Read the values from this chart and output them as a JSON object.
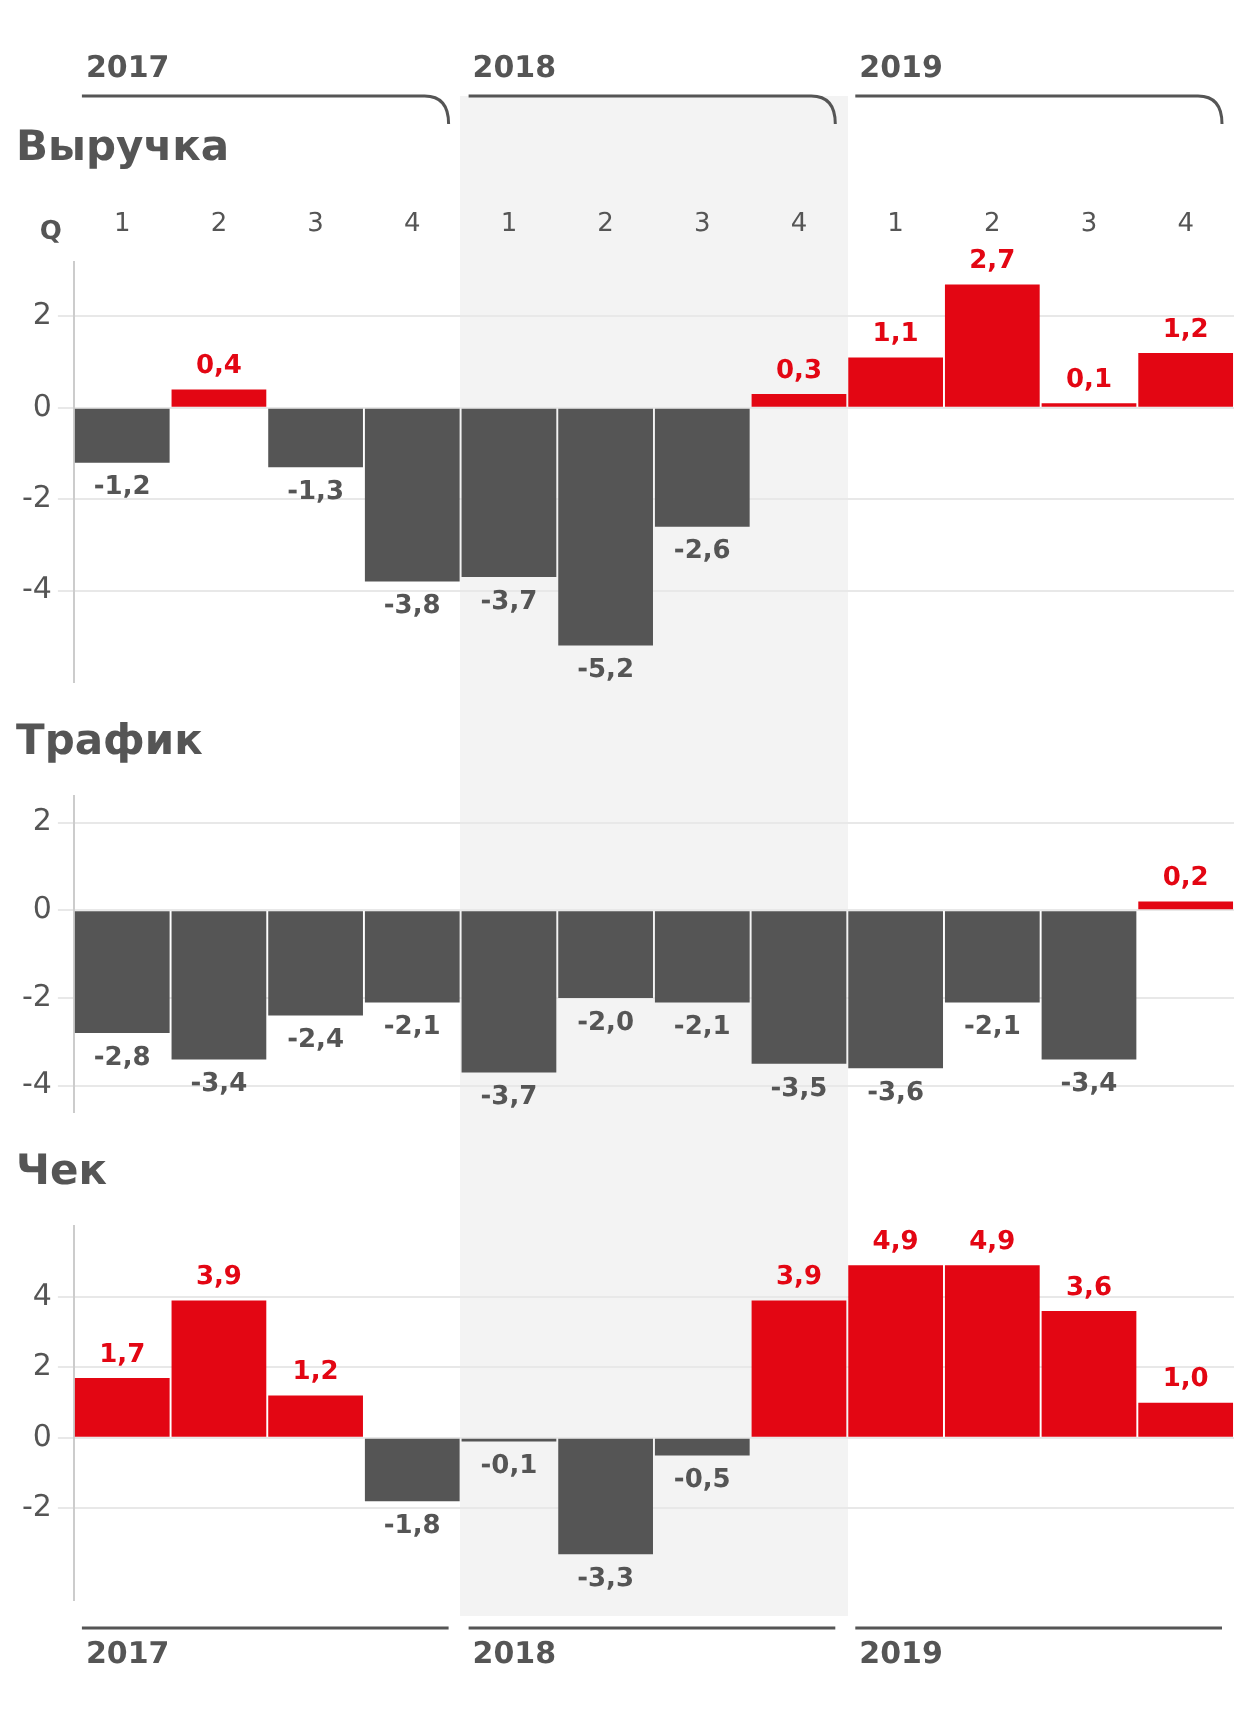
{
  "chart_data": [
    {
      "type": "bar",
      "title": "Выручка",
      "xlabel": "Q",
      "categories": [
        "1",
        "2",
        "3",
        "4",
        "1",
        "2",
        "3",
        "4",
        "1",
        "2",
        "3",
        "4"
      ],
      "values": [
        -1.2,
        0.4,
        -1.3,
        -3.8,
        -3.7,
        -5.2,
        -2.6,
        0.3,
        1.1,
        2.7,
        0.1,
        1.2
      ],
      "value_labels": [
        "-1,2",
        "0,4",
        "-1,3",
        "-3,8",
        "-3,7",
        "-5,2",
        "-2,6",
        "0,3",
        "1,1",
        "2,7",
        "0,1",
        "1,2"
      ],
      "colors": [
        "#555555",
        "#e30613",
        "#555555",
        "#555555",
        "#555555",
        "#555555",
        "#555555",
        "#e30613",
        "#e30613",
        "#e30613",
        "#e30613",
        "#e30613"
      ],
      "ylim": [
        -6,
        3.2
      ],
      "yticks": [
        -4,
        -2,
        0,
        2
      ],
      "grid": "y",
      "annotations": [
        "2017",
        "2018",
        "2019"
      ]
    },
    {
      "type": "bar",
      "title": "Трафик",
      "categories": [
        "1",
        "2",
        "3",
        "4",
        "1",
        "2",
        "3",
        "4",
        "1",
        "2",
        "3",
        "4"
      ],
      "tick_labels": "y",
      "values": [
        -2.8,
        -3.4,
        -2.4,
        -2.1,
        -3.7,
        -2.0,
        -2.1,
        -3.5,
        -3.6,
        -2.1,
        -3.4,
        0.2
      ],
      "value_labels": [
        "-2,8",
        "-3,4",
        "-2,4",
        "-2,1",
        "-3,7",
        "-2,0",
        "-2,1",
        "-3,5",
        "-3,6",
        "-2,1",
        "-3,4",
        "0,2"
      ],
      "colors": [
        "#555555",
        "#555555",
        "#555555",
        "#555555",
        "#555555",
        "#555555",
        "#555555",
        "#555555",
        "#555555",
        "#555555",
        "#555555",
        "#e30613"
      ],
      "ylim": [
        -4.6,
        2.6
      ],
      "yticks": [
        -4,
        -2,
        0,
        2
      ],
      "grid": "y"
    },
    {
      "type": "bar",
      "title": "Чек",
      "categories": [
        "1",
        "2",
        "3",
        "4",
        "1",
        "2",
        "3",
        "4",
        "1",
        "2",
        "3",
        "4"
      ],
      "tick_labels": "y",
      "values": [
        1.7,
        3.9,
        1.2,
        -1.8,
        -0.1,
        -3.3,
        -0.5,
        3.9,
        4.9,
        4.9,
        3.6,
        1.0
      ],
      "value_labels": [
        "1,7",
        "3,9",
        "1,2",
        "-1,8",
        "-0,1",
        "-3,3",
        "-0,5",
        "3,9",
        "4,9",
        "4,9",
        "3,6",
        "1,0"
      ],
      "colors": [
        "#e30613",
        "#e30613",
        "#e30613",
        "#555555",
        "#555555",
        "#555555",
        "#555555",
        "#e30613",
        "#e30613",
        "#e30613",
        "#e30613",
        "#e30613"
      ],
      "ylim": [
        -4.6,
        6
      ],
      "yticks": [
        -2,
        0,
        2,
        4
      ],
      "grid": "y",
      "annotations": [
        "2017",
        "2018",
        "2019"
      ]
    }
  ]
}
